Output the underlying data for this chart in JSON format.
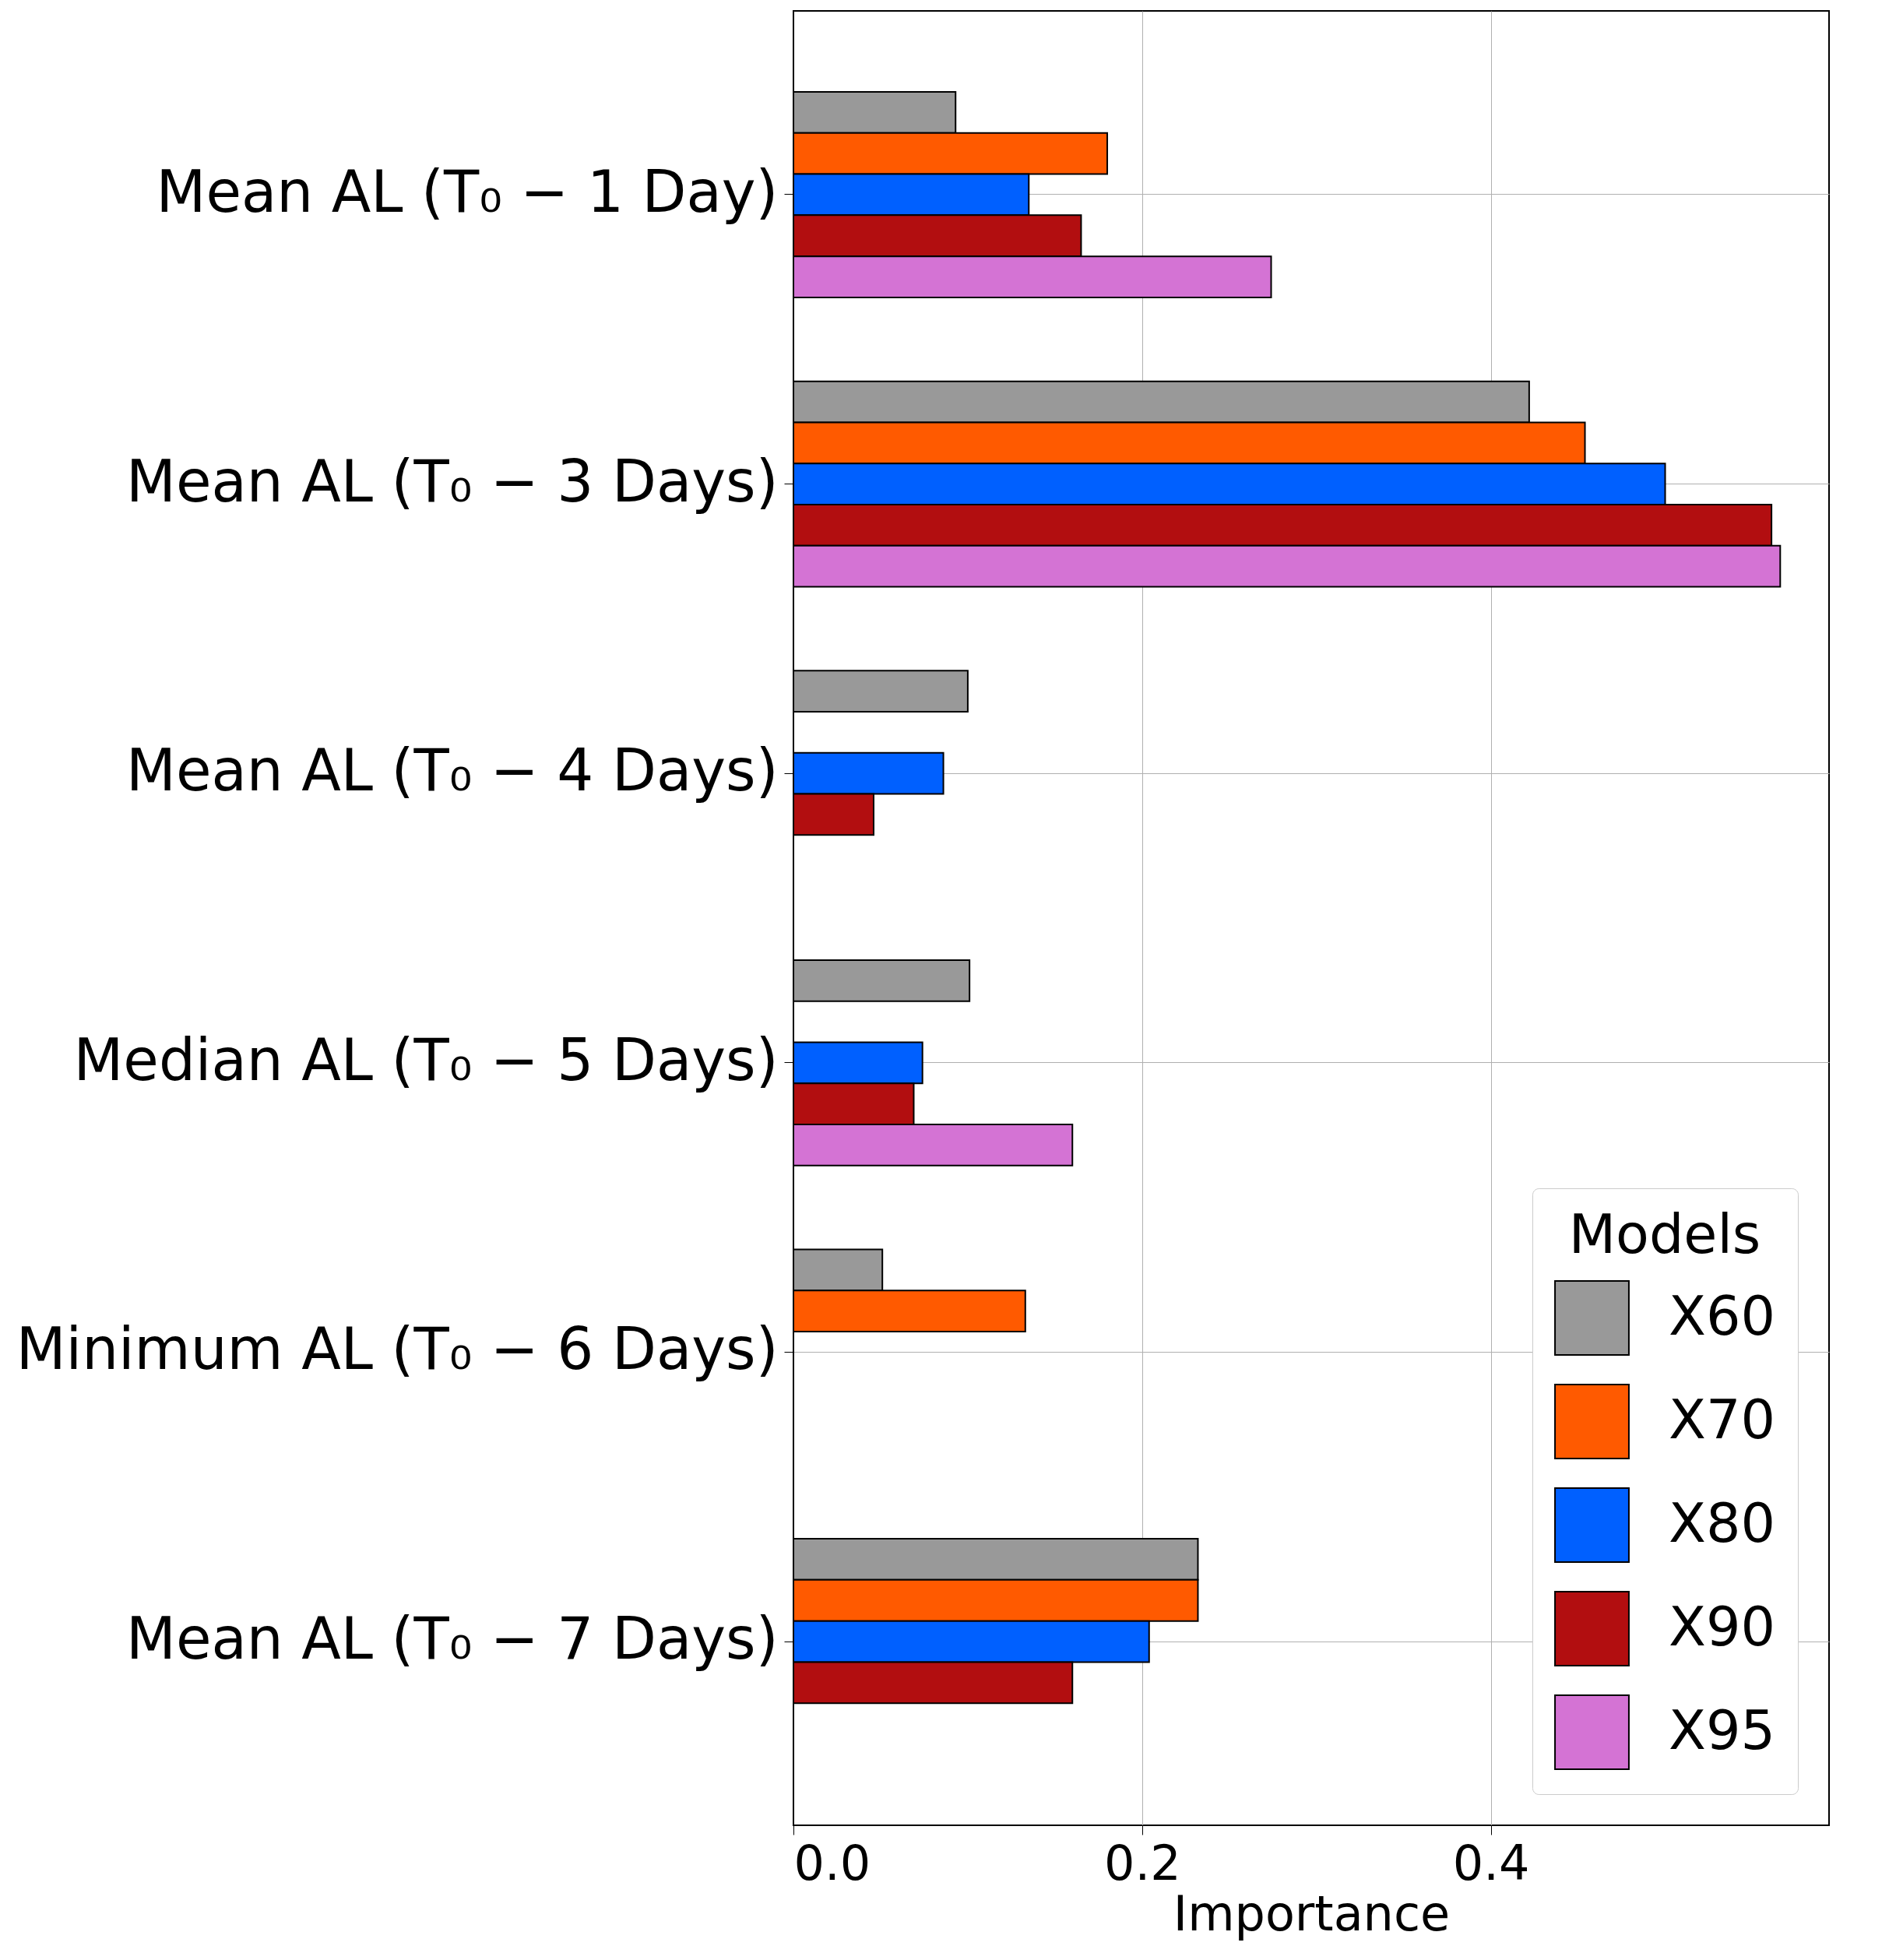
{
  "chart_data": {
    "type": "bar",
    "orientation": "horizontal",
    "xlabel": "Importance",
    "legend_title": "Models",
    "legend": "bottom right",
    "grid": true,
    "categories": [
      "Mean AL (T₀ − 1 Day)",
      "Mean AL (T₀ − 3 Days)",
      "Mean AL (T₀ − 4 Days)",
      "Median AL (T₀ − 5 Days)",
      "Minimum AL (T₀ − 6 Days)",
      "Mean AL (T₀ − 7 Days)"
    ],
    "xlim": [
      0,
      0.594
    ],
    "xticks": [
      {
        "value": 0,
        "label": "0.0"
      },
      0.2,
      0.4
    ],
    "series": [
      {
        "name": "X60",
        "color": "#999999",
        "values": [
          0.093,
          0.422,
          0.1,
          0.101,
          0.051,
          0.232
        ]
      },
      {
        "name": "X70",
        "color": "#ff5a00",
        "values": [
          0.18,
          0.454,
          null,
          null,
          0.133,
          0.232
        ]
      },
      {
        "name": "X80",
        "color": "#0060ff",
        "values": [
          0.135,
          0.5,
          0.086,
          0.074,
          null,
          0.204
        ]
      },
      {
        "name": "X90",
        "color": "#b20e10",
        "values": [
          0.165,
          0.561,
          0.046,
          0.069,
          null,
          0.16
        ]
      },
      {
        "name": "X95",
        "color": "#d473d4",
        "values": [
          0.274,
          0.566,
          null,
          0.16,
          null,
          null
        ]
      }
    ]
  }
}
